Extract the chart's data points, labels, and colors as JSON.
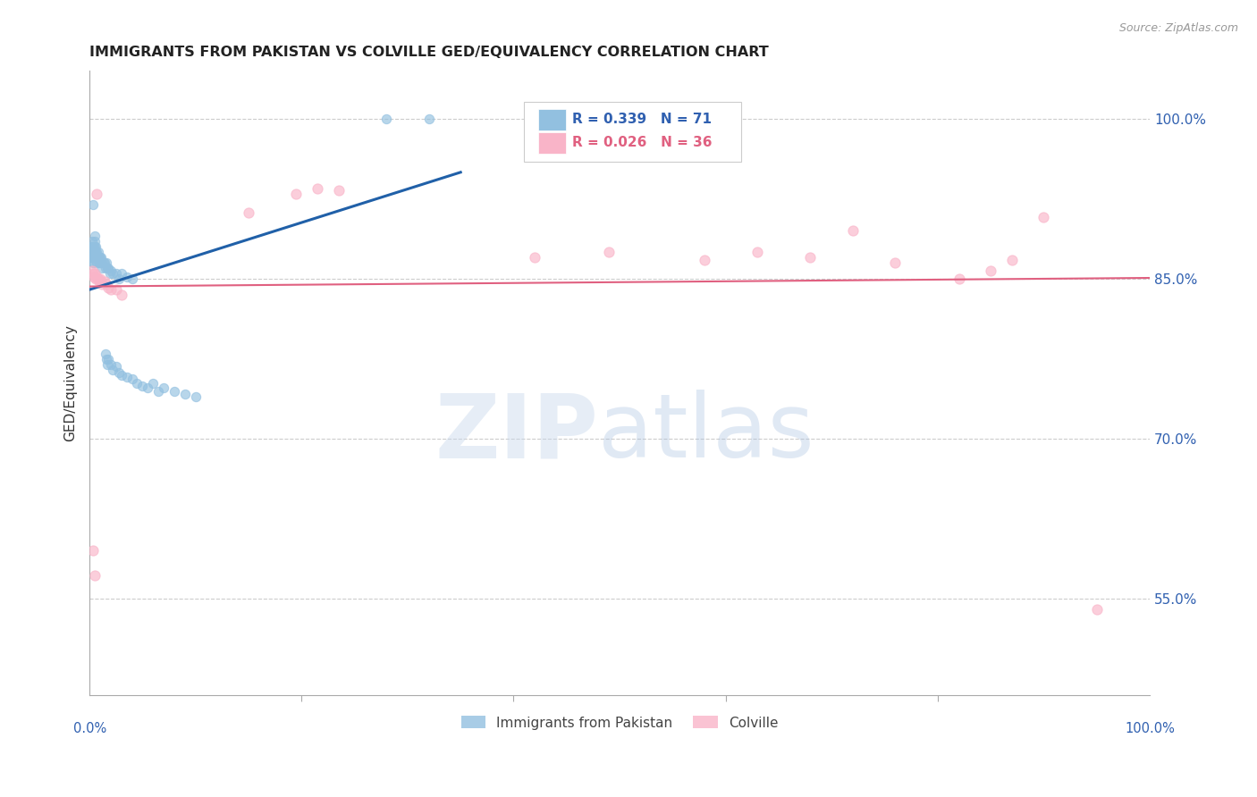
{
  "title": "IMMIGRANTS FROM PAKISTAN VS COLVILLE GED/EQUIVALENCY CORRELATION CHART",
  "source": "Source: ZipAtlas.com",
  "ylabel": "GED/Equivalency",
  "ytick_labels": [
    "55.0%",
    "70.0%",
    "85.0%",
    "100.0%"
  ],
  "ytick_values": [
    0.55,
    0.7,
    0.85,
    1.0
  ],
  "xlim": [
    0.0,
    1.0
  ],
  "ylim": [
    0.46,
    1.045
  ],
  "blue_color": "#92c0e0",
  "pink_color": "#f9b4c8",
  "blue_line_color": "#2060a8",
  "pink_line_color": "#e06080",
  "legend_label_blue": "Immigrants from Pakistan",
  "legend_label_pink": "Colville",
  "blue_points_x": [
    0.001,
    0.001,
    0.002,
    0.002,
    0.002,
    0.003,
    0.003,
    0.003,
    0.003,
    0.004,
    0.004,
    0.004,
    0.004,
    0.005,
    0.005,
    0.005,
    0.005,
    0.005,
    0.006,
    0.006,
    0.006,
    0.007,
    0.007,
    0.007,
    0.008,
    0.008,
    0.009,
    0.009,
    0.01,
    0.01,
    0.011,
    0.011,
    0.012,
    0.012,
    0.013,
    0.014,
    0.015,
    0.016,
    0.017,
    0.018,
    0.019,
    0.02,
    0.022,
    0.025,
    0.028,
    0.03,
    0.035,
    0.04,
    0.015,
    0.016,
    0.017,
    0.018,
    0.02,
    0.022,
    0.025,
    0.028,
    0.03,
    0.035,
    0.04,
    0.045,
    0.05,
    0.055,
    0.06,
    0.065,
    0.07,
    0.08,
    0.09,
    0.1,
    0.28,
    0.32,
    0.003
  ],
  "blue_points_y": [
    0.88,
    0.87,
    0.885,
    0.875,
    0.87,
    0.88,
    0.875,
    0.87,
    0.865,
    0.88,
    0.875,
    0.87,
    0.865,
    0.89,
    0.885,
    0.88,
    0.875,
    0.87,
    0.88,
    0.875,
    0.87,
    0.875,
    0.87,
    0.865,
    0.875,
    0.87,
    0.87,
    0.865,
    0.87,
    0.865,
    0.87,
    0.865,
    0.865,
    0.86,
    0.865,
    0.865,
    0.86,
    0.865,
    0.86,
    0.86,
    0.855,
    0.858,
    0.855,
    0.855,
    0.85,
    0.855,
    0.852,
    0.85,
    0.78,
    0.775,
    0.77,
    0.775,
    0.77,
    0.765,
    0.768,
    0.762,
    0.76,
    0.758,
    0.756,
    0.752,
    0.75,
    0.748,
    0.752,
    0.745,
    0.748,
    0.745,
    0.742,
    0.74,
    1.0,
    1.0,
    0.92
  ],
  "pink_points_x": [
    0.002,
    0.003,
    0.004,
    0.005,
    0.006,
    0.007,
    0.008,
    0.009,
    0.01,
    0.011,
    0.012,
    0.014,
    0.016,
    0.018,
    0.02,
    0.025,
    0.03,
    0.15,
    0.195,
    0.215,
    0.235,
    0.42,
    0.49,
    0.58,
    0.63,
    0.68,
    0.72,
    0.76,
    0.82,
    0.85,
    0.87,
    0.9,
    0.003,
    0.005,
    0.95,
    0.007
  ],
  "pink_points_y": [
    0.858,
    0.855,
    0.852,
    0.855,
    0.85,
    0.852,
    0.85,
    0.848,
    0.85,
    0.848,
    0.845,
    0.848,
    0.845,
    0.842,
    0.84,
    0.84,
    0.835,
    0.912,
    0.93,
    0.935,
    0.933,
    0.87,
    0.875,
    0.868,
    0.875,
    0.87,
    0.895,
    0.865,
    0.85,
    0.858,
    0.868,
    0.908,
    0.596,
    0.572,
    0.54,
    0.93
  ],
  "blue_trend_x": [
    0.0,
    0.35
  ],
  "blue_trend_y": [
    0.84,
    0.95
  ],
  "pink_trend_x": [
    0.0,
    1.0
  ],
  "pink_trend_y": [
    0.843,
    0.851
  ]
}
